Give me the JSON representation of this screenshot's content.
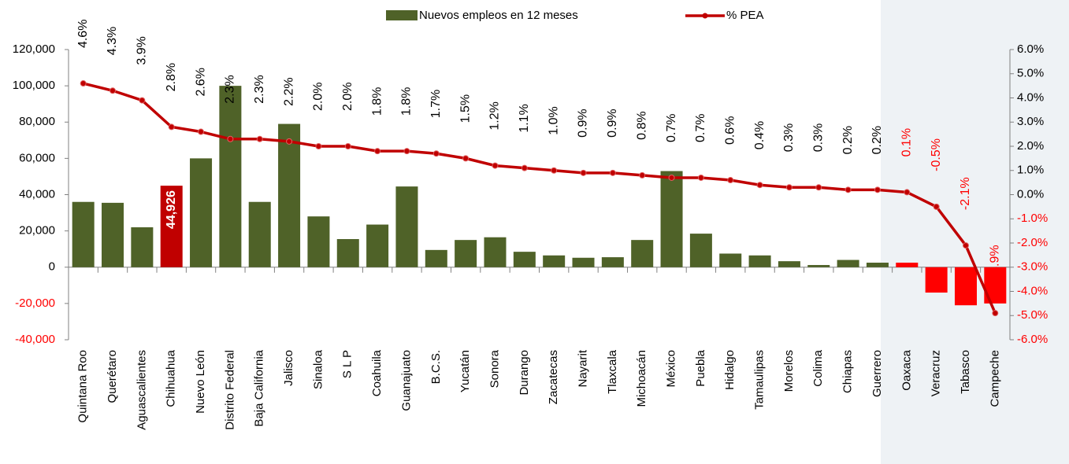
{
  "chart_data": {
    "type": "bar_line",
    "categories": [
      "Quintana Roo",
      "Querétaro",
      "Aguascalientes",
      "Chihuahua",
      "Nuevo León",
      "Distrito Federal",
      "Baja California",
      "Jalisco",
      "Sinaloa",
      "S L P",
      "Coahuila",
      "Guanajuato",
      "B.C.S.",
      "Yucatán",
      "Sonora",
      "Durango",
      "Zacatecas",
      "Nayarit",
      "Tlaxcala",
      "Michoacán",
      "México",
      "Puebla",
      "Hidalgo",
      "Tamaulipas",
      "Morelos",
      "Colima",
      "Chiapas",
      "Guerrero",
      "Oaxaca",
      "Veracruz",
      "Tabasco",
      "Campeche"
    ],
    "series": [
      {
        "name": "Nuevos empleos en 12 meses",
        "type": "bar",
        "color": "#4f6228",
        "colors": [
          "#4f6228",
          "#4f6228",
          "#4f6228",
          "#c00000",
          "#4f6228",
          "#4f6228",
          "#4f6228",
          "#4f6228",
          "#4f6228",
          "#4f6228",
          "#4f6228",
          "#4f6228",
          "#4f6228",
          "#4f6228",
          "#4f6228",
          "#4f6228",
          "#4f6228",
          "#4f6228",
          "#4f6228",
          "#4f6228",
          "#4f6228",
          "#4f6228",
          "#4f6228",
          "#4f6228",
          "#4f6228",
          "#4f6228",
          "#4f6228",
          "#4f6228",
          "#ff0000",
          "#ff0000",
          "#ff0000",
          "#ff0000"
        ],
        "values": [
          36000,
          35500,
          22000,
          44926,
          60000,
          100000,
          36000,
          79000,
          28000,
          15500,
          23500,
          44500,
          9500,
          15000,
          16500,
          8500,
          6500,
          5200,
          5500,
          15000,
          53000,
          18500,
          7500,
          6500,
          3300,
          1200,
          4000,
          2500,
          2500,
          -14000,
          -21000,
          -20000
        ],
        "value_labels": [
          null,
          null,
          null,
          "44,926",
          null,
          null,
          null,
          null,
          null,
          null,
          null,
          null,
          null,
          null,
          null,
          null,
          null,
          null,
          null,
          null,
          null,
          null,
          null,
          null,
          null,
          null,
          null,
          null,
          null,
          null,
          null,
          null
        ]
      },
      {
        "name": "% PEA",
        "type": "line",
        "axis": "y2",
        "color": "#c00000",
        "values": [
          4.6,
          4.3,
          3.9,
          2.8,
          2.6,
          2.3,
          2.3,
          2.2,
          2.0,
          2.0,
          1.8,
          1.8,
          1.7,
          1.5,
          1.2,
          1.1,
          1.0,
          0.9,
          0.9,
          0.8,
          0.7,
          0.7,
          0.6,
          0.4,
          0.3,
          0.3,
          0.2,
          0.2,
          0.1,
          -0.5,
          -2.1,
          -4.9
        ],
        "value_labels": [
          "4.6%",
          "4.3%",
          "3.9%",
          "2.8%",
          "2.6%",
          "2.3%",
          "2.3%",
          "2.2%",
          "2.0%",
          "2.0%",
          "1.8%",
          "1.8%",
          "1.7%",
          "1.5%",
          "1.2%",
          "1.1%",
          "1.0%",
          "0.9%",
          "0.9%",
          "0.8%",
          "0.7%",
          "0.7%",
          "0.6%",
          "0.4%",
          "0.3%",
          "0.3%",
          "0.2%",
          "0.2%",
          "0.1%",
          "-0.5%",
          "-2.1%",
          "-4.9%"
        ],
        "label_colors": [
          "#000000",
          "#000000",
          "#000000",
          "#000000",
          "#000000",
          "#000000",
          "#000000",
          "#000000",
          "#000000",
          "#000000",
          "#000000",
          "#000000",
          "#000000",
          "#000000",
          "#000000",
          "#000000",
          "#000000",
          "#000000",
          "#000000",
          "#000000",
          "#000000",
          "#000000",
          "#000000",
          "#000000",
          "#000000",
          "#000000",
          "#000000",
          "#000000",
          "#ff0000",
          "#ff0000",
          "#ff0000",
          "#ff0000"
        ]
      }
    ],
    "ylim": [
      -40000,
      120000
    ],
    "yticks": [
      {
        "value": -40000,
        "label": "-40,000"
      },
      {
        "value": -20000,
        "label": "-20,000"
      },
      0,
      {
        "value": 20000,
        "label": "20,000"
      },
      {
        "value": 40000,
        "label": "40,000"
      },
      {
        "value": 60000,
        "label": "60,000"
      },
      {
        "value": 80000,
        "label": "80,000"
      },
      {
        "value": 100000,
        "label": "100,000"
      },
      {
        "value": 120000,
        "label": "120,000"
      }
    ],
    "y2lim": [
      -6,
      6
    ],
    "y2ticks": [
      {
        "value": -6,
        "label": "-6.0%"
      },
      {
        "value": -5,
        "label": "-5.0%"
      },
      {
        "value": -4,
        "label": "-4.0%"
      },
      {
        "value": -3,
        "label": "-3.0%"
      },
      {
        "value": -2,
        "label": "-2.0%"
      },
      {
        "value": -1,
        "label": "-1.0%"
      },
      {
        "value": 0,
        "label": "0.0%"
      },
      {
        "value": 1,
        "label": "1.0%"
      },
      {
        "value": 2,
        "label": "2.0%"
      },
      {
        "value": 3,
        "label": "3.0%"
      },
      {
        "value": 4,
        "label": "4.0%"
      },
      {
        "value": 5,
        "label": "5.0%"
      },
      {
        "value": 6,
        "label": "6.0%"
      }
    ],
    "y2_label_color": "#ff0000",
    "y_negative_label_color": "#ff0000"
  }
}
